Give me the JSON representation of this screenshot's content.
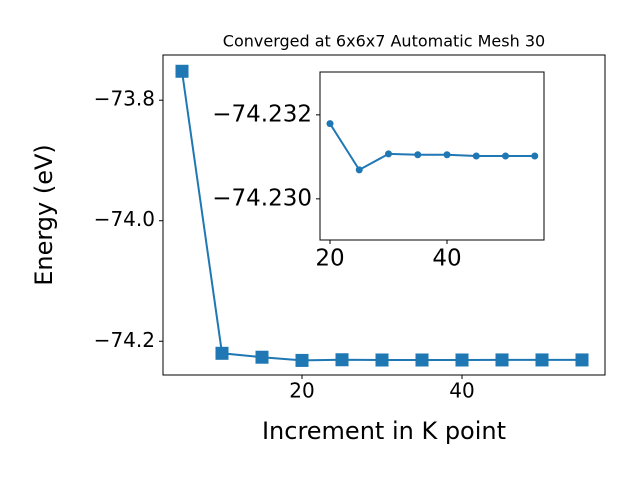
{
  "chart_data": [
    {
      "type": "line",
      "title": "Converged at 6x6x7 Automatic Mesh 30",
      "x_label": "Increment in K point",
      "y_label": "Energy (eV)",
      "x": [
        5,
        10,
        15,
        20,
        25,
        30,
        35,
        40,
        45,
        50,
        55
      ],
      "series": [
        {
          "color": "#1f77b4",
          "marker": "square",
          "values": [
            -73.752,
            -74.22,
            -74.2265,
            -74.2318,
            -74.2307,
            -74.2311,
            -74.2311,
            -74.2311,
            -74.231,
            -74.231,
            -74.231
          ]
        }
      ],
      "xlim": [
        2.625,
        57.875
      ],
      "ylim": [
        -74.256,
        -73.725
      ],
      "xticks": [
        20,
        40
      ],
      "yticks": [
        {
          "value": -74.2,
          "label": "−74.2"
        },
        {
          "value": -74.0,
          "label": "−74.0"
        },
        {
          "value": -73.8,
          "label": "−73.8"
        }
      ],
      "grid": false
    },
    {
      "type": "line",
      "x": [
        20,
        25,
        30,
        35,
        40,
        45,
        50,
        55
      ],
      "series": [
        {
          "color": "#1f77b4",
          "marker": "circle",
          "values": [
            -74.23179,
            -74.23069,
            -74.23107,
            -74.23105,
            -74.23105,
            -74.23102,
            -74.23102,
            -74.23102
          ]
        }
      ],
      "xlim": [
        18.29,
        56.58
      ],
      "ylim": [
        -74.22902,
        -74.23302
      ],
      "xticks": [
        20,
        40
      ],
      "yticks": [
        {
          "value": -74.23,
          "label": "−74.230"
        },
        {
          "value": -74.232,
          "label": "−74.232"
        }
      ],
      "grid": false
    }
  ]
}
